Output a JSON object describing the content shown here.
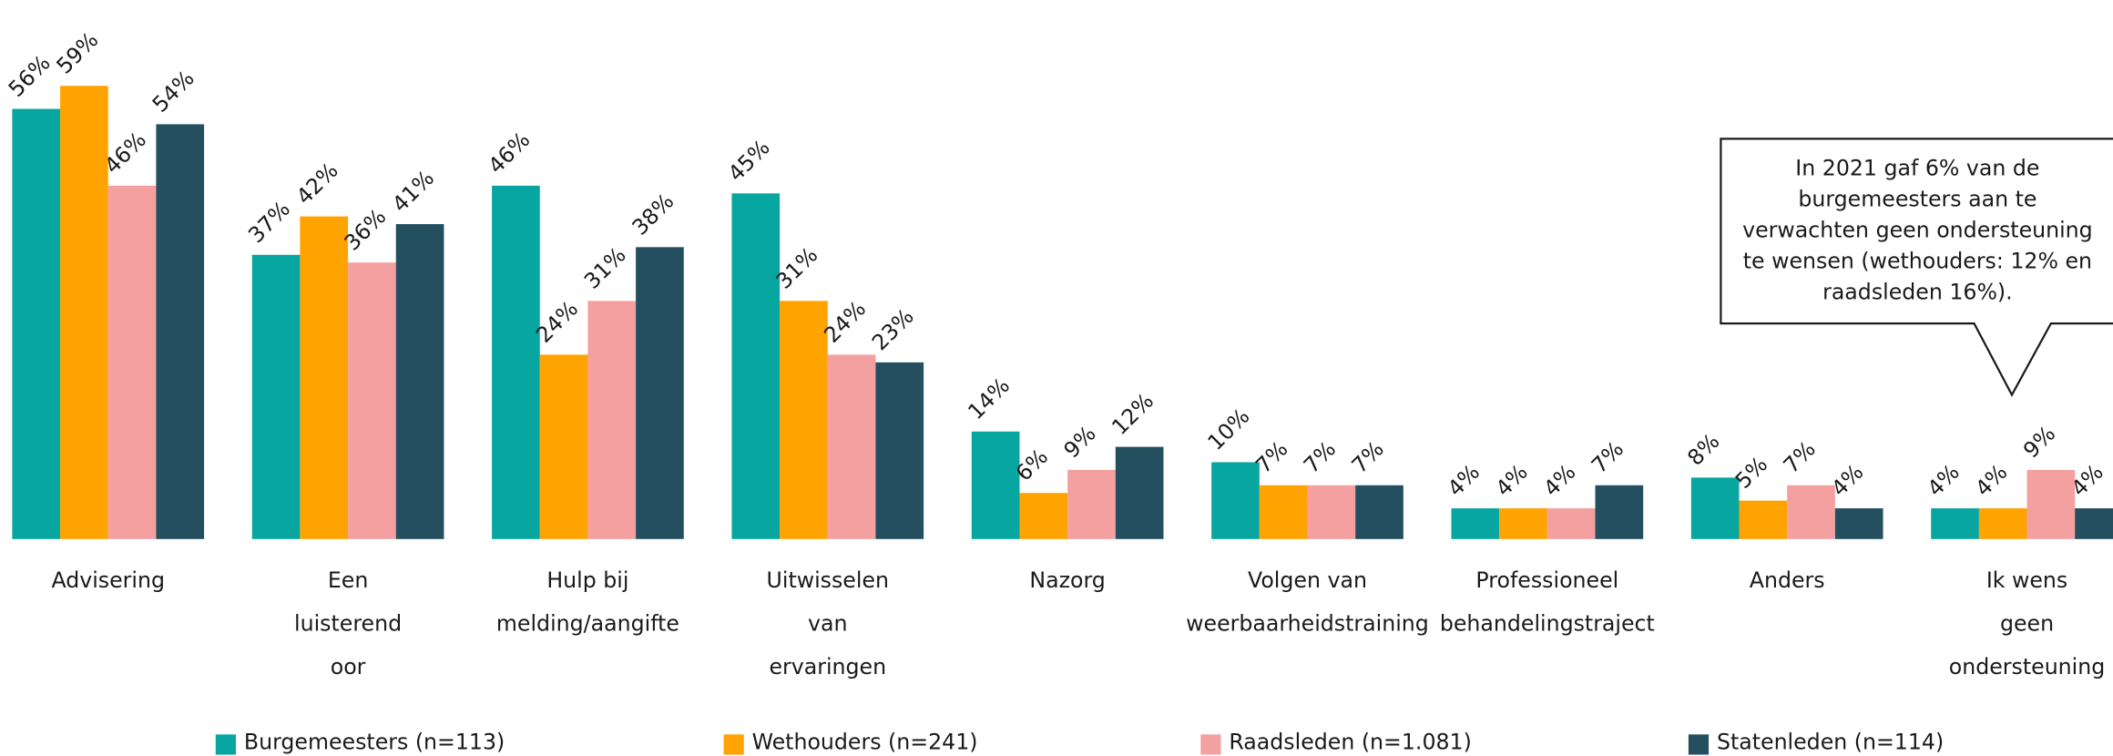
{
  "chart_data": {
    "type": "bar",
    "categories": [
      "Advisering",
      "Een\nluisterend\noor",
      "Hulp bij\nmelding/aangifte",
      "Uitwisselen\nvan\nervaringen",
      "Nazorg",
      "Volgen van\nweerbaarheidstraining",
      "Professioneel\nbehandelingstraject",
      "Anders",
      "Ik wens\ngeen\nondersteuning"
    ],
    "series": [
      {
        "name": "Burgemeesters (n=113)",
        "color": "#08a6a0",
        "values": [
          56,
          37,
          46,
          45,
          14,
          10,
          4,
          8,
          4
        ],
        "value_labels": [
          "56%",
          "37%",
          "46%",
          "45%",
          "14%",
          "10%",
          "4%",
          "8%",
          "4%"
        ]
      },
      {
        "name": "Wethouders (n=241)",
        "color": "#ffa300",
        "values": [
          59,
          42,
          24,
          31,
          6,
          7,
          4,
          5,
          4
        ],
        "value_labels": [
          "59%",
          "42%",
          "24%",
          "31%",
          "6%",
          "7%",
          "4%",
          "5%",
          "4%"
        ]
      },
      {
        "name": "Raadsleden (n=1.081)",
        "color": "#f4a0a0",
        "values": [
          46,
          36,
          31,
          24,
          9,
          7,
          4,
          7,
          9
        ],
        "value_labels": [
          "46%",
          "36%",
          "31%",
          "24%",
          "9%",
          "7%",
          "4%",
          "7%",
          "9%"
        ]
      },
      {
        "name": "Statenleden (n=114)",
        "color": "#234f5e",
        "values": [
          54,
          41,
          38,
          23,
          12,
          7,
          7,
          4,
          4
        ],
        "value_labels": [
          "54%",
          "41%",
          "38%",
          "23%",
          "12%",
          "7%",
          "7%",
          "4%",
          "4%"
        ]
      }
    ],
    "ylim": [
      0,
      70
    ],
    "annotation": "In 2021 gaf 6% van de\nburgemeesters aan te\nverwachten geen ondersteuning\nte wensen (wethouders: 12% en\nraadsleden 16%)."
  }
}
